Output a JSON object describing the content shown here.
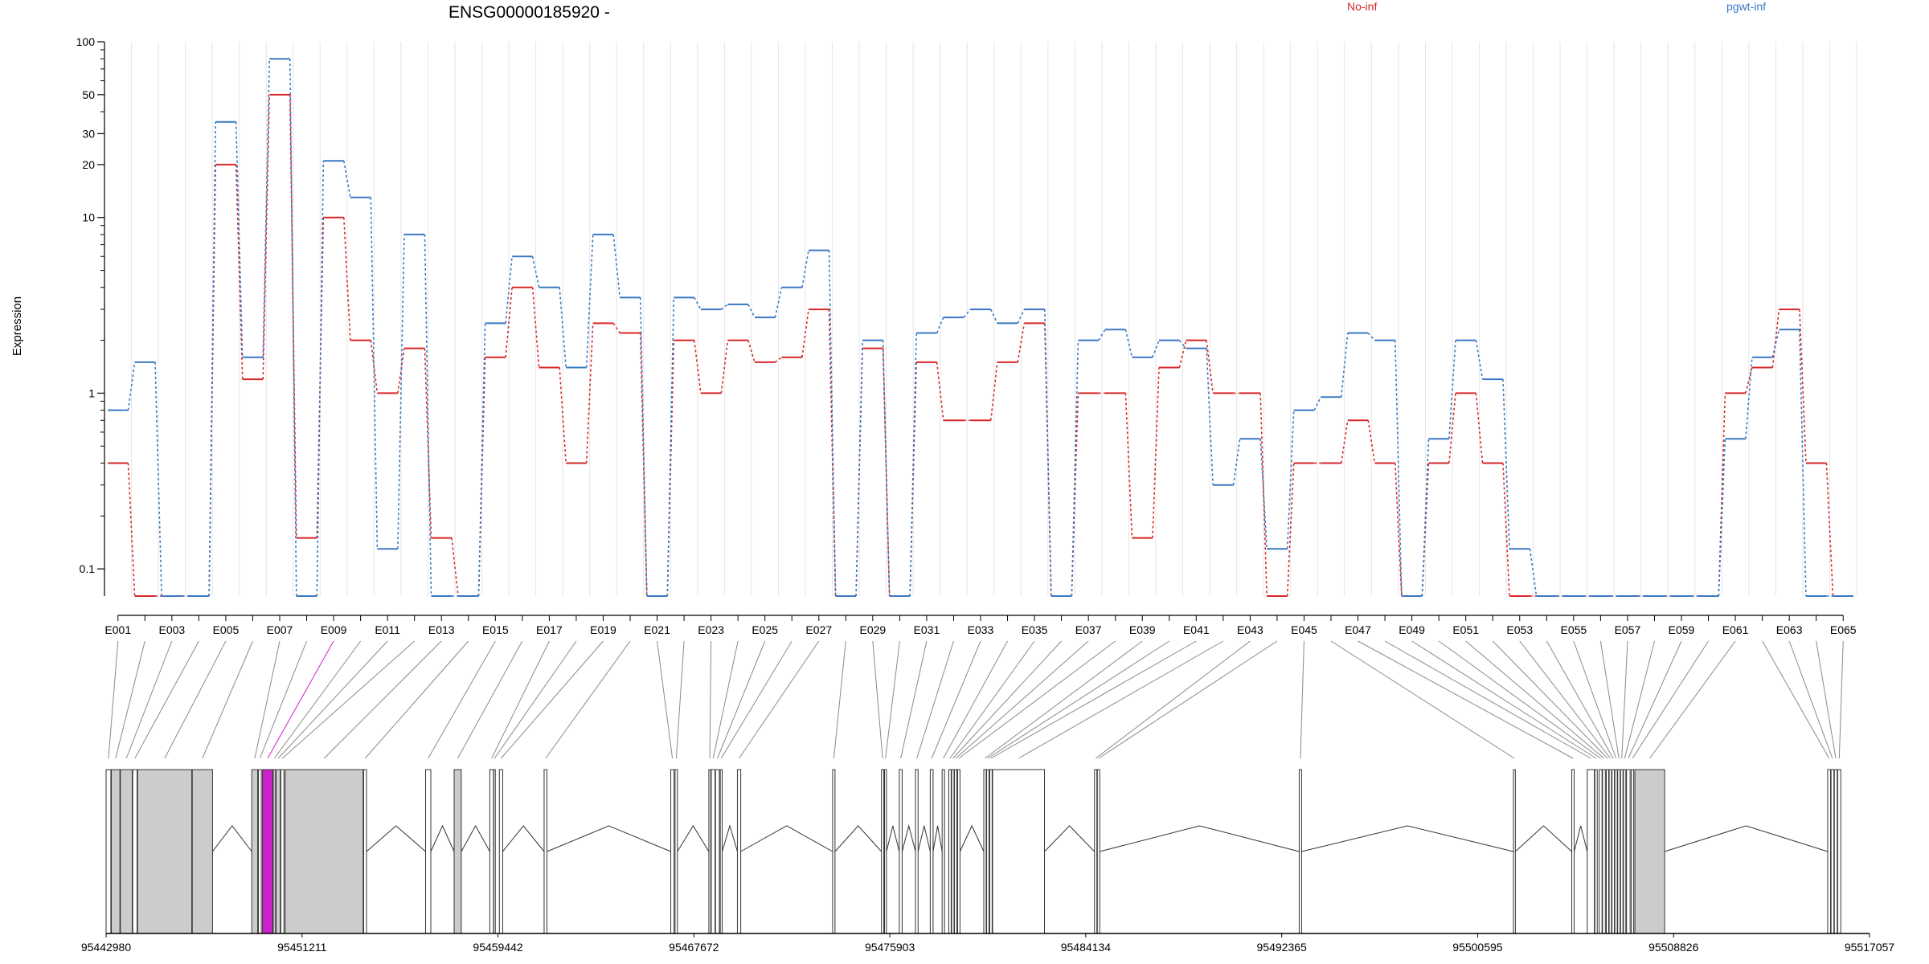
{
  "chart_data": {
    "type": "line",
    "title": "ENSG00000185920 -",
    "ylabel": "Expression",
    "yscale": "log",
    "ylim": [
      0.07,
      100
    ],
    "yticks": [
      0.1,
      1,
      10,
      20,
      30,
      50,
      100
    ],
    "ytick_labels": [
      "0.1",
      "1",
      "10",
      "20",
      "30",
      "50",
      "100"
    ],
    "exon_ids": [
      "E001",
      "E002",
      "E003",
      "E004",
      "E005",
      "E006",
      "E007",
      "E008",
      "E009",
      "E010",
      "E011",
      "E012",
      "E013",
      "E014",
      "E015",
      "E016",
      "E017",
      "E018",
      "E019",
      "E020",
      "E021",
      "E022",
      "E023",
      "E024",
      "E025",
      "E026",
      "E027",
      "E028",
      "E029",
      "E030",
      "E031",
      "E032",
      "E033",
      "E034",
      "E035",
      "E036",
      "E037",
      "E038",
      "E039",
      "E040",
      "E041",
      "E042",
      "E043",
      "E044",
      "E045",
      "E046",
      "E047",
      "E048",
      "E049",
      "E050",
      "E051",
      "E052",
      "E053",
      "E054",
      "E055",
      "E056",
      "E057",
      "E058",
      "E059",
      "E060",
      "E061",
      "E062",
      "E063",
      "E064",
      "E065"
    ],
    "tick_labels": [
      "E001",
      "E003",
      "E005",
      "E007",
      "E009",
      "E011",
      "E013",
      "E015",
      "E017",
      "E019",
      "E021",
      "E023",
      "E025",
      "E027",
      "E029",
      "E031",
      "E033",
      "E035",
      "E037",
      "E039",
      "E041",
      "E043",
      "E045",
      "E047",
      "E049",
      "E051",
      "E053",
      "E055",
      "E057",
      "E059",
      "E061",
      "E063",
      "E065"
    ],
    "legend": "top",
    "series": [
      {
        "name": "No-inf",
        "color": "#d62728",
        "values": [
          0.4,
          0.07,
          0.07,
          0.07,
          20,
          1.2,
          50,
          0.15,
          10,
          2,
          1,
          1.8,
          0.15,
          0.07,
          1.6,
          4,
          1.4,
          0.4,
          2.5,
          2.2,
          0.07,
          2,
          1,
          2,
          1.5,
          1.6,
          3,
          0.07,
          1.8,
          0.07,
          1.5,
          0.7,
          0.7,
          1.5,
          2.5,
          0.07,
          1,
          1,
          0.15,
          1.4,
          2,
          1,
          1,
          0.07,
          0.4,
          0.4,
          0.7,
          0.4,
          0.07,
          0.4,
          1,
          0.4,
          0.07,
          0.07,
          0.07,
          0.07,
          0.07,
          0.07,
          0.07,
          0.07,
          1,
          1.4,
          3,
          0.4,
          0.07
        ]
      },
      {
        "name": "pgwt-inf",
        "color": "#3a78c3",
        "values": [
          0.8,
          1.5,
          0.07,
          0.07,
          35,
          1.6,
          80,
          0.07,
          21,
          13,
          0.13,
          8,
          0.07,
          0.07,
          2.5,
          6,
          4,
          1.4,
          8,
          3.5,
          0.07,
          3.5,
          3,
          3.2,
          2.7,
          4,
          6.5,
          0.07,
          2,
          0.07,
          2.2,
          2.7,
          3,
          2.5,
          3,
          0.07,
          2,
          2.3,
          1.6,
          2,
          1.8,
          0.3,
          0.55,
          0.13,
          0.8,
          0.95,
          2.2,
          2,
          0.07,
          0.55,
          2,
          1.2,
          0.13,
          0.07,
          0.07,
          0.07,
          0.07,
          0.07,
          0.07,
          0.07,
          0.55,
          1.6,
          2.3,
          0.07,
          0.07
        ]
      }
    ],
    "genome": {
      "start": 95442980,
      "end": 95517057,
      "axis_labels": [
        "95442980",
        "95451211",
        "95459442",
        "95467672",
        "95475903",
        "95484134",
        "95492365",
        "95500595",
        "95508826",
        "95517057"
      ],
      "exons": [
        {
          "id": "E001",
          "start": 95442980,
          "end": 95443180
        },
        {
          "id": "E002",
          "start": 95443200,
          "end": 95443560
        },
        {
          "id": "E003",
          "start": 95443580,
          "end": 95444080
        },
        {
          "id": "E004",
          "start": 95444100,
          "end": 95444280
        },
        {
          "id": "E005",
          "start": 95444300,
          "end": 95446580
        },
        {
          "id": "E006",
          "start": 95446600,
          "end": 95447450
        },
        {
          "id": "E007",
          "start": 95449100,
          "end": 95449350
        },
        {
          "id": "E008",
          "start": 95449380,
          "end": 95449500
        },
        {
          "id": "E009",
          "start": 95449550,
          "end": 95449980
        },
        {
          "id": "E010",
          "start": 95450000,
          "end": 95450100
        },
        {
          "id": "E011",
          "start": 95450120,
          "end": 95450300
        },
        {
          "id": "E012",
          "start": 95450320,
          "end": 95450450
        },
        {
          "id": "E013",
          "start": 95450500,
          "end": 95453780
        },
        {
          "id": "E014",
          "start": 95453800,
          "end": 95453920
        },
        {
          "id": "E015",
          "start": 95456400,
          "end": 95456620
        },
        {
          "id": "E016",
          "start": 95457600,
          "end": 95457900
        },
        {
          "id": "E017",
          "start": 95459100,
          "end": 95459250
        },
        {
          "id": "E018",
          "start": 95459260,
          "end": 95459330
        },
        {
          "id": "E019",
          "start": 95459500,
          "end": 95459640
        },
        {
          "id": "E020",
          "start": 95461380,
          "end": 95461500
        },
        {
          "id": "E021",
          "start": 95466700,
          "end": 95466840
        },
        {
          "id": "E022",
          "start": 95466880,
          "end": 95466980
        },
        {
          "id": "E023",
          "start": 95468300,
          "end": 95468380
        },
        {
          "id": "E024",
          "start": 95468400,
          "end": 95468560
        },
        {
          "id": "E025",
          "start": 95468580,
          "end": 95468740
        },
        {
          "id": "E026",
          "start": 95468780,
          "end": 95468860
        },
        {
          "id": "E027",
          "start": 95469500,
          "end": 95469640
        },
        {
          "id": "E028",
          "start": 95473500,
          "end": 95473600
        },
        {
          "id": "E029",
          "start": 95475550,
          "end": 95475650
        },
        {
          "id": "E030",
          "start": 95475680,
          "end": 95475760
        },
        {
          "id": "E031",
          "start": 95476300,
          "end": 95476420
        },
        {
          "id": "E032",
          "start": 95476980,
          "end": 95477090
        },
        {
          "id": "E033",
          "start": 95477600,
          "end": 95477720
        },
        {
          "id": "E034",
          "start": 95478100,
          "end": 95478200
        },
        {
          "id": "E035",
          "start": 95478380,
          "end": 95478480
        },
        {
          "id": "E036",
          "start": 95478500,
          "end": 95478600
        },
        {
          "id": "E037",
          "start": 95478620,
          "end": 95478720
        },
        {
          "id": "E038",
          "start": 95478750,
          "end": 95478850
        },
        {
          "id": "E039",
          "start": 95479850,
          "end": 95479950
        },
        {
          "id": "E040",
          "start": 95479970,
          "end": 95480070
        },
        {
          "id": "E041",
          "start": 95480100,
          "end": 95480200
        },
        {
          "id": "E042",
          "start": 95480220,
          "end": 95482400
        },
        {
          "id": "E043",
          "start": 95484500,
          "end": 95484600
        },
        {
          "id": "E044",
          "start": 95484620,
          "end": 95484720
        },
        {
          "id": "E045",
          "start": 95493100,
          "end": 95493200
        },
        {
          "id": "E046",
          "start": 95502100,
          "end": 95502180
        },
        {
          "id": "E047",
          "start": 95504550,
          "end": 95504650
        },
        {
          "id": "E048",
          "start": 95505200,
          "end": 95505500
        },
        {
          "id": "E049",
          "start": 95505520,
          "end": 95505620
        },
        {
          "id": "E050",
          "start": 95505700,
          "end": 95505820
        },
        {
          "id": "E051",
          "start": 95505840,
          "end": 95505960
        },
        {
          "id": "E052",
          "start": 95506000,
          "end": 95506100
        },
        {
          "id": "E053",
          "start": 95506120,
          "end": 95506220
        },
        {
          "id": "E054",
          "start": 95506240,
          "end": 95506340
        },
        {
          "id": "E055",
          "start": 95506360,
          "end": 95506460
        },
        {
          "id": "E056",
          "start": 95506480,
          "end": 95506580
        },
        {
          "id": "E057",
          "start": 95506600,
          "end": 95506700
        },
        {
          "id": "E058",
          "start": 95506720,
          "end": 95506820
        },
        {
          "id": "E059",
          "start": 95506850,
          "end": 95507000
        },
        {
          "id": "E060",
          "start": 95507050,
          "end": 95507150
        },
        {
          "id": "E061",
          "start": 95507200,
          "end": 95508450
        },
        {
          "id": "E062",
          "start": 95515300,
          "end": 95515420
        },
        {
          "id": "E063",
          "start": 95515440,
          "end": 95515560
        },
        {
          "id": "E064",
          "start": 95515580,
          "end": 95515700
        },
        {
          "id": "E065",
          "start": 95515720,
          "end": 95515850
        }
      ],
      "shaded_exons": [
        "E002",
        "E003",
        "E005",
        "E006",
        "E007",
        "E010",
        "E011",
        "E013",
        "E016",
        "E061"
      ],
      "highlighted_exon": "E009",
      "highlight_color": "#cc22cc"
    }
  }
}
